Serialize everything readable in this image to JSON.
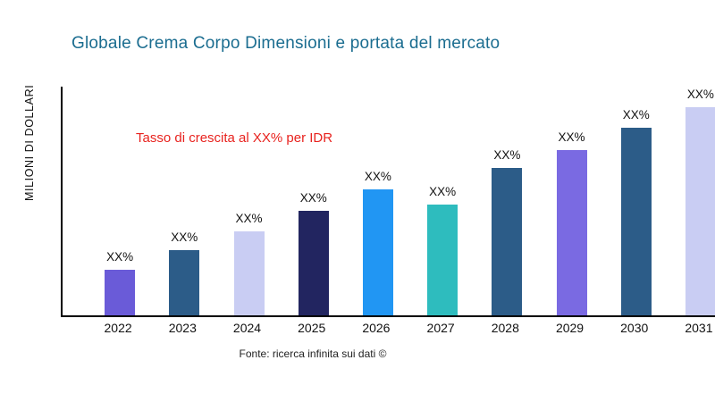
{
  "page": {
    "title": "Globale Crema Corpo Dimensioni e portata del mercato",
    "y_axis_label": "MILIONI DI DOLLARI",
    "annotation": "Tasso di crescita al XX% per IDR",
    "source": "Fonte: ricerca infinita sui dati ©"
  },
  "colors": {
    "title": "#1b6d90",
    "annotation": "#e8231f",
    "axis": "#000000"
  },
  "chart_data": {
    "type": "bar",
    "title": "Globale Crema Corpo Dimensioni e portata del mercato",
    "xlabel": "",
    "ylabel": "MILIONI DI DOLLARI",
    "categories": [
      "2022",
      "2023",
      "2024",
      "2025",
      "2026",
      "2027",
      "2028",
      "2029",
      "2030",
      "2031"
    ],
    "values": [
      51,
      73,
      94,
      117,
      141,
      124,
      165,
      185,
      210,
      233
    ],
    "data_labels": [
      "XX%",
      "XX%",
      "XX%",
      "XX%",
      "XX%",
      "XX%",
      "XX%",
      "XX%",
      "XX%",
      "XX%"
    ],
    "bar_colors": [
      "#6a5bd8",
      "#2c5c88",
      "#c9cdf3",
      "#222560",
      "#2196f3",
      "#2ebcbe",
      "#2c5c88",
      "#7a6ae2",
      "#2c5c88",
      "#c9cdf3"
    ],
    "ylim": [
      0,
      256
    ],
    "grid": false,
    "legend": false,
    "annotation": "Tasso di crescita al XX% per IDR",
    "source": "Fonte: ricerca infinita sui dati ©"
  }
}
